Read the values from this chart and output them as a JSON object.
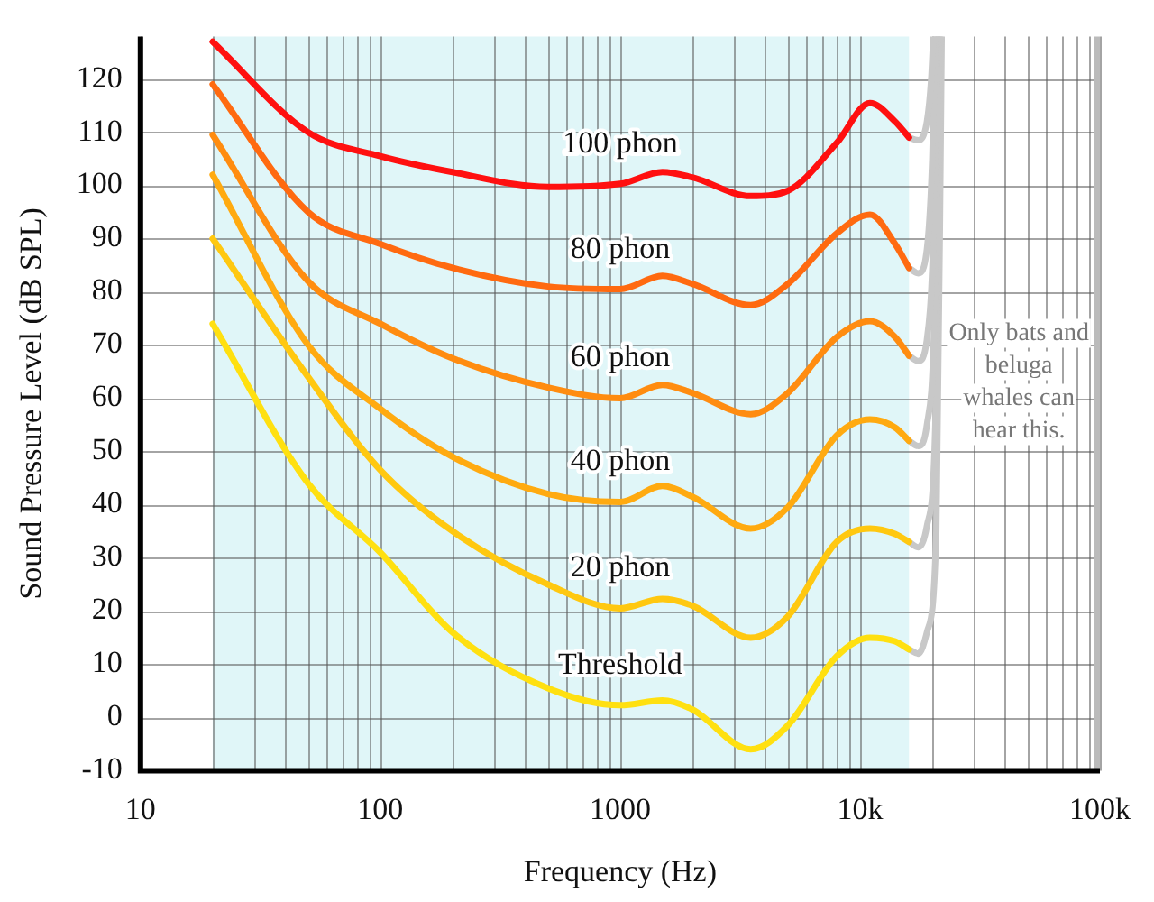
{
  "chart_data": {
    "type": "line",
    "xlabel": "Frequency (Hz)",
    "ylabel": "Sound Pressure Level (dB SPL)",
    "log": "x",
    "xlim": [
      10,
      100000
    ],
    "ylim": [
      -10,
      128
    ],
    "xticks": [
      10,
      {
        "value": 20,
        "label": null
      },
      {
        "value": 30,
        "label": null
      },
      {
        "value": 40,
        "label": null
      },
      {
        "value": 50,
        "label": null
      },
      {
        "value": 60,
        "label": null
      },
      {
        "value": 70,
        "label": null
      },
      {
        "value": 80,
        "label": null
      },
      {
        "value": 90,
        "label": null
      },
      100,
      {
        "value": 200,
        "label": null
      },
      {
        "value": 300,
        "label": null
      },
      {
        "value": 400,
        "label": null
      },
      {
        "value": 500,
        "label": null
      },
      {
        "value": 600,
        "label": null
      },
      {
        "value": 700,
        "label": null
      },
      {
        "value": 800,
        "label": null
      },
      {
        "value": 900,
        "label": null
      },
      1000,
      {
        "value": 2000,
        "label": null
      },
      {
        "value": 3000,
        "label": null
      },
      {
        "value": 4000,
        "label": null
      },
      {
        "value": 5000,
        "label": null
      },
      {
        "value": 6000,
        "label": null
      },
      {
        "value": 7000,
        "label": null
      },
      {
        "value": 8000,
        "label": null
      },
      {
        "value": 9000,
        "label": null
      },
      {
        "value": 10000,
        "label": "10k"
      },
      {
        "value": 20000,
        "label": null
      },
      {
        "value": 30000,
        "label": null
      },
      {
        "value": 40000,
        "label": null
      },
      {
        "value": 50000,
        "label": null
      },
      {
        "value": 60000,
        "label": null
      },
      {
        "value": 70000,
        "label": null
      },
      {
        "value": 80000,
        "label": null
      },
      {
        "value": 90000,
        "label": null
      },
      {
        "value": 100000,
        "label": "100k"
      }
    ],
    "yticks": [
      -10,
      0,
      10,
      20,
      30,
      40,
      50,
      60,
      70,
      80,
      90,
      100,
      110,
      120
    ],
    "grid": true,
    "legend": false,
    "marker": "none",
    "x": [
      20,
      50,
      100,
      200,
      500,
      1000,
      1500,
      2000,
      3500,
      5000,
      8000,
      11000,
      14000,
      16000
    ],
    "series": [
      {
        "name": "100 phon",
        "color": "#ff1010",
        "values": [
          127,
          110,
          105.5,
          102.5,
          99.7,
          100.3,
          102.5,
          101.5,
          98,
          99,
          108,
          115.5,
          112,
          109
        ]
      },
      {
        "name": "80 phon",
        "color": "#ff6a10",
        "values": [
          119,
          95,
          89,
          84.5,
          81,
          80.5,
          83,
          81.5,
          77.5,
          81.5,
          91,
          94.5,
          89,
          84.5
        ]
      },
      {
        "name": "60 phon",
        "color": "#ff8c10",
        "values": [
          109.5,
          82,
          74,
          67.5,
          62,
          60,
          62.5,
          61,
          57,
          61,
          71.5,
          74.5,
          71.5,
          68
        ]
      },
      {
        "name": "40 phon",
        "color": "#ffaa10",
        "values": [
          102,
          70,
          58,
          49,
          42,
          40.5,
          43.5,
          41.5,
          35.5,
          39.5,
          53,
          56,
          54.5,
          52
        ]
      },
      {
        "name": "20 phon",
        "color": "#ffc810",
        "values": [
          90,
          64,
          46.5,
          35,
          25,
          20.5,
          22.3,
          21,
          15,
          19,
          33,
          35.5,
          34.5,
          33
        ]
      },
      {
        "name": "Threshold",
        "color": "#ffe010",
        "values": [
          74,
          44,
          31,
          16,
          5.5,
          2.3,
          3.2,
          1.5,
          -6,
          -1.5,
          11.5,
          15,
          14.3,
          12.8
        ]
      },
      {
        "color": "#c8c8c8",
        "x": [
          16000,
          17500,
          19000,
          19800,
          20200
        ],
        "values": [
          109,
          108.5,
          112,
          120,
          128
        ]
      },
      {
        "color": "#c8c8c8",
        "x": [
          16000,
          17500,
          19000,
          20000,
          20600
        ],
        "values": [
          84.5,
          83.5,
          88,
          105,
          128
        ]
      },
      {
        "color": "#c8c8c8",
        "x": [
          16000,
          17500,
          19000,
          20200,
          21000
        ],
        "values": [
          68,
          67,
          71,
          90,
          128
        ]
      },
      {
        "color": "#c8c8c8",
        "x": [
          16000,
          17500,
          19000,
          20400,
          21300
        ],
        "values": [
          52,
          51,
          55,
          75,
          128
        ]
      },
      {
        "color": "#c8c8c8",
        "x": [
          16000,
          17500,
          19000,
          20600,
          21600
        ],
        "values": [
          33,
          32,
          36,
          55,
          128
        ]
      },
      {
        "color": "#c8c8c8",
        "x": [
          16000,
          17500,
          19000,
          20800,
          21900
        ],
        "values": [
          12.8,
          12,
          16,
          35,
          128
        ]
      }
    ],
    "bands": [
      {
        "axis": "x",
        "from": 20,
        "to": 16000,
        "color": "#e0f6f8"
      }
    ],
    "annotations": [
      "Only bats and beluga whales can hear this."
    ]
  }
}
